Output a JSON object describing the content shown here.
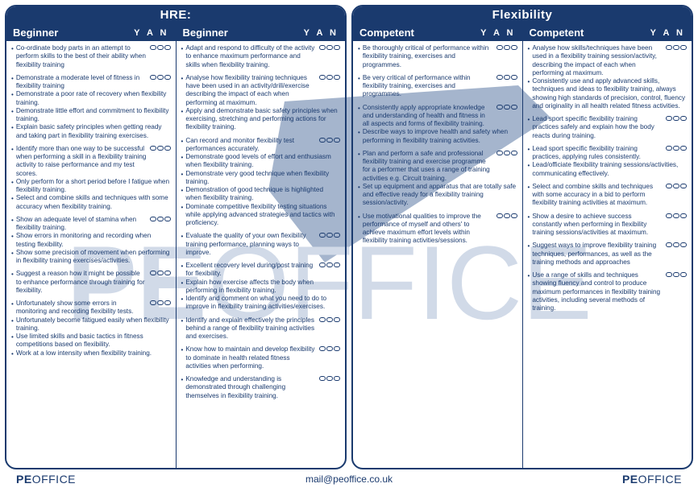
{
  "colors": {
    "brand": "#1a3a6e",
    "watermark_fill": "#c9d4e4",
    "watermark_check": "#6a85ad",
    "bg": "#ffffff"
  },
  "header": {
    "left_title": "HRE:",
    "right_title": "Flexibility"
  },
  "yan_label": "Y A N",
  "columns": [
    {
      "level": "Beginner",
      "groups": [
        {
          "bubbles": true,
          "items": [
            "Co-ordinate body parts in an attempt to perform skills to the best of their ability when flexibility training"
          ]
        },
        {
          "bubbles": true,
          "items": [
            "Demonstrate a moderate level of fitness in flexibility training",
            "Demonstrate a poor rate of recovery when flexibility training.",
            "Demonstrate little effort and commitment to flexibility training.",
            "Explain basic safety principles when getting ready and taking part in flexibility training exercises."
          ]
        },
        {
          "bubbles": true,
          "items": [
            "Identify more than one way to be successful when performing a skill in a flexibility training activity to raise performance and my test scores.",
            "Only perform for a short period before I fatigue when flexibility training.",
            "Select and combine skills and techniques with some accuracy when flexibility training."
          ]
        },
        {
          "bubbles": true,
          "items": [
            "Show an adequate level of stamina when flexibility training.",
            "Show errors in monitoring and recording when testing flexibility.",
            "Show some precision of movement when performing in flexibility training exercises/activities."
          ]
        },
        {
          "bubbles": true,
          "items": [
            "Suggest a reason how it might be possible to enhance performance through training for flexibility."
          ]
        },
        {
          "bubbles": true,
          "items": [
            "Unfortunately show some errors in monitoring and recording flexibility tests.",
            "Unfortunately become fatigued easily when flexibility training.",
            "Use limited skills and basic tactics in fitness competitions based on flexibility.",
            "Work at a low intensity when flexibility training."
          ]
        }
      ]
    },
    {
      "level": "Beginner",
      "groups": [
        {
          "bubbles": true,
          "items": [
            "Adapt and respond to difficulty of the activity to enhance maximum performance and skills when flexibility training."
          ]
        },
        {
          "bubbles": true,
          "items": [
            "Analyse how flexibility training techniques have been used in an activity/drill/exercise describing the impact of each when performing at maximum.",
            "Apply and demonstrate basic safety principles when exercising, stretching and performing actions for flexibility training."
          ]
        },
        {
          "bubbles": true,
          "items": [
            "Can record and monitor flexibility test performances accurately.",
            "Demonstrate good levels of effort and enthusiasm when flexibility training.",
            "Demonstrate very good technique when flexibility training.",
            "Demonstration of good technique is highlighted when flexibility training.",
            "Dominate competitive flexibility testing situations while applying advanced strategies and tactics with proficiency."
          ]
        },
        {
          "bubbles": true,
          "items": [
            "Evaluate the quality of your own flexibility training performance, planning ways to improve."
          ]
        },
        {
          "bubbles": true,
          "items": [
            "Excellent recovery level during/post training for flexibility.",
            "Explain how exercise affects the body when performing in flexibility training.",
            "Identify and comment on what you need to do to improve in flexibility training activities/exercises."
          ]
        },
        {
          "bubbles": true,
          "items": [
            "Identify and explain effectively the principles behind a range of flexibility training activities and exercises."
          ]
        },
        {
          "bubbles": true,
          "items": [
            "Know how to maintain and develop flexibility to dominate in health related fitness activities when performing."
          ]
        },
        {
          "bubbles": true,
          "items": [
            "Knowledge and understanding is demonstrated through challenging themselves in flexibility training."
          ]
        }
      ]
    },
    {
      "level": "Competent",
      "groups": [
        {
          "bubbles": true,
          "items": [
            "Be thoroughly critical of performance within flexibility training, exercises and programmes."
          ]
        },
        {
          "bubbles": true,
          "items": [
            "Be very critical of performance within flexibility training, exercises and programmes."
          ]
        },
        {
          "bubbles": true,
          "items": [
            "Consistently apply appropriate knowledge and understanding of health and fitness in all aspects and forms of flexibility training.",
            "Describe ways to improve health and safety when performing in flexibility training activities."
          ]
        },
        {
          "bubbles": true,
          "items": [
            "Plan and perform a safe and professional flexibility training and exercise programme for a performer that uses a range of training activities e.g. Circuit training.",
            "Set up equipment and apparatus that are totally safe and effective ready for a flexibility training session/activity."
          ]
        },
        {
          "bubbles": true,
          "items": [
            "Use motivational qualities to improve the performance of myself and others' to achieve maximum effort levels within flexibility training activities/sessions."
          ]
        }
      ]
    },
    {
      "level": "Competent",
      "groups": [
        {
          "bubbles": true,
          "items": [
            "Analyse how skills/techniques have been used in a flexibility training session/activity, describing the impact of each when performing at maximum.",
            "Consistently use and apply advanced skills, techniques and ideas to flexibility training, always showing high standards of precision, control, fluency and originality in all health related fitness activities."
          ]
        },
        {
          "bubbles": true,
          "items": [
            "Lead sport specific flexibility training practices safely and explain how the body reacts during training."
          ]
        },
        {
          "bubbles": true,
          "items": [
            "Lead sport specific flexibility training practices, applying rules consistently.",
            "Lead/officiate flexibility training sessions/activities, communicating effectively."
          ]
        },
        {
          "bubbles": true,
          "items": [
            "Select and combine skills and techniques with some accuracy in a bid to perform flexibility training activities at maximum."
          ]
        },
        {
          "bubbles": true,
          "items": [
            "Show a desire to achieve success constantly when performing in flexibility training sessions/activities at maximum."
          ]
        },
        {
          "bubbles": true,
          "items": [
            "Suggest ways to improve flexibility training techniques, performances, as well as the training methods and approaches"
          ]
        },
        {
          "bubbles": true,
          "items": [
            "Use a range of skills and techniques showing fluency and control to produce maximum performances in flexibility training activities, including several methods of training."
          ]
        }
      ]
    }
  ],
  "footer": {
    "logo_pe": "PE",
    "logo_office": "OFFICE",
    "email": "mail@peoffice.co.uk"
  }
}
